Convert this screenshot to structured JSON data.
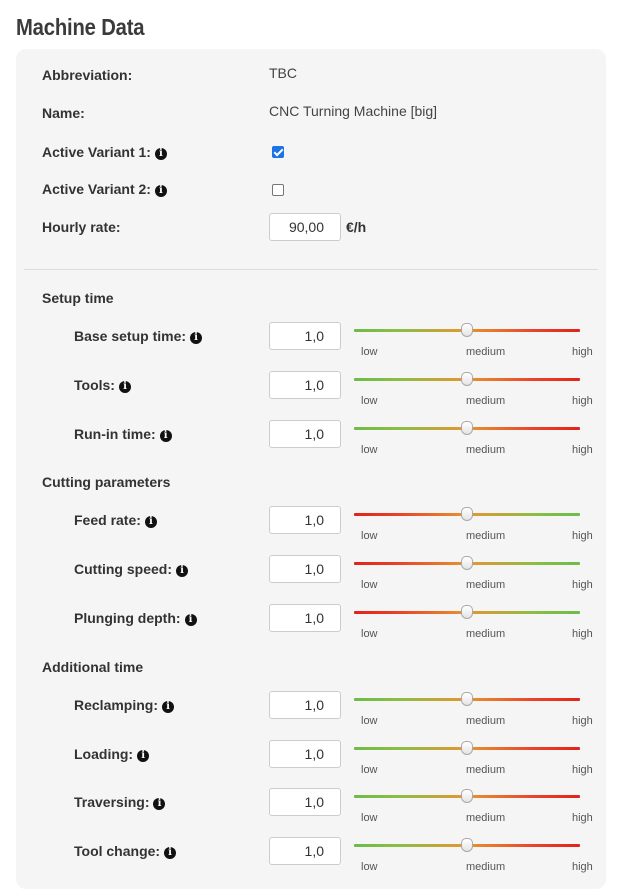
{
  "page_title": "Machine Data",
  "general": {
    "abbreviation_label": "Abbreviation:",
    "abbreviation_value": "TBC",
    "name_label": "Name:",
    "name_value": "CNC Turning Machine [big]",
    "active_variant_1_label": "Active Variant 1:",
    "active_variant_1_checked": true,
    "active_variant_2_label": "Active Variant 2:",
    "active_variant_2_checked": false,
    "hourly_rate_label": "Hourly rate:",
    "hourly_rate_value": "90,00",
    "hourly_rate_unit": "€/h"
  },
  "info_icon_glyph": "i",
  "slider_labels": {
    "low": "low",
    "medium": "medium",
    "high": "high"
  },
  "sections": [
    {
      "title": "Setup time",
      "rows": [
        {
          "label": "Base setup time:",
          "value": "1,0",
          "gradient": "green-red",
          "level": 0.5
        },
        {
          "label": "Tools:",
          "value": "1,0",
          "gradient": "green-red",
          "level": 0.5
        },
        {
          "label": "Run-in time:",
          "value": "1,0",
          "gradient": "green-red",
          "level": 0.5
        }
      ]
    },
    {
      "title": "Cutting parameters",
      "rows": [
        {
          "label": "Feed rate:",
          "value": "1,0",
          "gradient": "red-green",
          "level": 0.5
        },
        {
          "label": "Cutting speed:",
          "value": "1,0",
          "gradient": "red-green",
          "level": 0.5
        },
        {
          "label": "Plunging depth:",
          "value": "1,0",
          "gradient": "red-green",
          "level": 0.5
        }
      ]
    },
    {
      "title": "Additional time",
      "rows": [
        {
          "label": "Reclamping:",
          "value": "1,0",
          "gradient": "green-red",
          "level": 0.5
        },
        {
          "label": "Loading:",
          "value": "1,0",
          "gradient": "green-red",
          "level": 0.5
        },
        {
          "label": "Traversing:",
          "value": "1,0",
          "gradient": "green-red",
          "level": 0.5
        },
        {
          "label": "Tool change:",
          "value": "1,0",
          "gradient": "green-red",
          "level": 0.5
        }
      ]
    }
  ],
  "colors": {
    "slider_green": "#6cbc4a",
    "slider_orange": "#e69531",
    "slider_red": "#e32219",
    "panel_background": "#f5f5f5",
    "checkbox_accent": "#1a73e8"
  }
}
